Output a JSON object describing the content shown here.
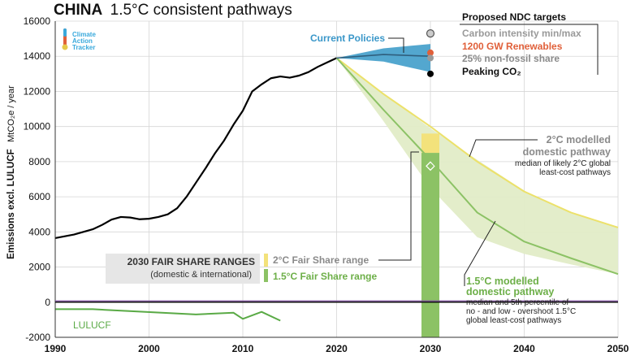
{
  "chart_data": {
    "type": "line",
    "title_bold": "CHINA",
    "title_rest": "1.5°C consistent pathways",
    "ylabel_bold": "Emissions excl. LULUCF",
    "ylabel_unit": "MtCO₂e / year",
    "ylim": [
      -2000,
      16000
    ],
    "xlim": [
      1990,
      2050
    ],
    "yticks": [
      -2000,
      0,
      2000,
      4000,
      6000,
      8000,
      10000,
      12000,
      14000,
      16000
    ],
    "xticks": [
      1990,
      2000,
      2010,
      2020,
      2030,
      2040,
      2050
    ],
    "grid": true,
    "logo": [
      "Climate",
      "Action",
      "Tracker"
    ],
    "series": [
      {
        "name": "historical",
        "color": "#000000",
        "x": [
          1990,
          1992,
          1994,
          1995,
          1996,
          1997,
          1998,
          1999,
          2000,
          2001,
          2002,
          2003,
          2004,
          2005,
          2006,
          2007,
          2008,
          2009,
          2010,
          2011,
          2012,
          2013,
          2014,
          2015,
          2016,
          2017,
          2018,
          2019,
          2020
        ],
        "y": [
          3650,
          3850,
          4150,
          4400,
          4700,
          4850,
          4820,
          4720,
          4750,
          4850,
          5000,
          5350,
          6000,
          6800,
          7600,
          8450,
          9200,
          10100,
          10900,
          12000,
          12400,
          12750,
          12850,
          12780,
          12900,
          13100,
          13400,
          13650,
          13900
        ]
      },
      {
        "name": "LULUCF",
        "color": "#5aaa46",
        "x": [
          1990,
          1994,
          2005,
          2009,
          2010,
          2012,
          2014
        ],
        "y": [
          -400,
          -400,
          -700,
          -600,
          -950,
          -550,
          -1050
        ]
      },
      {
        "name": "2°C modelled domestic pathway",
        "color": "#ece16a",
        "x": [
          2020,
          2025,
          2030,
          2035,
          2040,
          2045,
          2050
        ],
        "y": [
          13900,
          11850,
          10000,
          8000,
          6300,
          5100,
          4250
        ]
      },
      {
        "name": "1.5°C modelled domestic pathway",
        "color": "#8cc265",
        "x": [
          2020,
          2025,
          2030,
          2035,
          2040,
          2045,
          2050
        ],
        "y": [
          13900,
          10950,
          8100,
          5100,
          3450,
          2500,
          1600
        ]
      }
    ],
    "bands": [
      {
        "name": "1.5°C pathway range",
        "color": "#e2ecc7",
        "x": [
          2020,
          2025,
          2030,
          2035,
          2040,
          2045,
          2050
        ],
        "upper": [
          13900,
          11900,
          9900,
          8100,
          6350,
          5050,
          4300
        ],
        "lower": [
          13900,
          10300,
          6500,
          3700,
          2750,
          2150,
          1600
        ]
      },
      {
        "name": "Current Policies",
        "color": "#4aa2cc",
        "x": [
          2020,
          2025,
          2030
        ],
        "upper": [
          13900,
          14450,
          14700
        ],
        "lower": [
          13900,
          13700,
          13100
        ]
      }
    ],
    "current_policies_line": {
      "color": "#2f5f7e",
      "x": [
        2020,
        2025,
        2030
      ],
      "y": [
        13900,
        14100,
        14000
      ]
    },
    "fair_share_bar": {
      "x": 2030,
      "two_deg_range": [
        8500,
        9600
      ],
      "one_five_deg_range": [
        -2000,
        8500
      ],
      "two_deg_color": "#f3e27b",
      "one_five_deg_color": "#8cc265",
      "marker_y": 7750
    },
    "ndc_markers": [
      {
        "label": "Carbon intensity min/max",
        "y": 15300,
        "color": "#cccccc"
      },
      {
        "label": "1200 GW Renewables",
        "y": 14200,
        "color": "#e0603a"
      },
      {
        "label": "25% non-fossil share",
        "y": 13900,
        "color": "#9a9a9a"
      },
      {
        "label": "Peaking CO₂",
        "y": 13000,
        "color": "#000000"
      }
    ],
    "annotations": {
      "current_policies": "Current Policies",
      "ndc_heading": "Proposed NDC targets",
      "two_deg_title": [
        "2°C modelled",
        "domestic pathway"
      ],
      "two_deg_desc": [
        "median of likely 2°C global",
        "least-cost pathways"
      ],
      "one_five_title": [
        "1.5°C modelled",
        "domestic pathway"
      ],
      "one_five_desc": [
        "median and 5th percentile of",
        "no - and low - overshoot 1.5°C",
        "global least-cost pathways"
      ],
      "fair_share_title": "2030 FAIR SHARE RANGES",
      "fair_share_sub": "(domestic & international)",
      "two_fs": "2°C Fair Share range",
      "one_five_fs": "1.5°C Fair Share range",
      "lulucf": "LULUCF"
    }
  }
}
